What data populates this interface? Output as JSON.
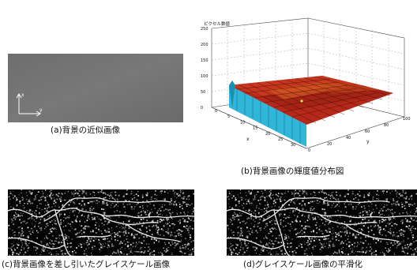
{
  "figure": {
    "panel_a": {
      "caption": "(a)背景の近似画像",
      "axis_x": "y",
      "axis_y": "x"
    },
    "panel_b": {
      "caption": "(b)背景画像の輝度値分布図",
      "z_title": "ピクセル数値",
      "z_ticks": [
        "0",
        "50",
        "100",
        "150",
        "200",
        "250"
      ],
      "x_ticks": [
        "0",
        "5",
        "10",
        "15",
        "20",
        "25",
        "30"
      ],
      "y_ticks": [
        "0",
        "20",
        "40",
        "60",
        "80",
        "100"
      ],
      "x_label": "x",
      "y_label": "y"
    },
    "panel_c": {
      "caption": "(c)背景画像を差し引いたグレイスケール画像"
    },
    "panel_d": {
      "caption": "(d)グレイスケール画像の平滑化"
    }
  }
}
